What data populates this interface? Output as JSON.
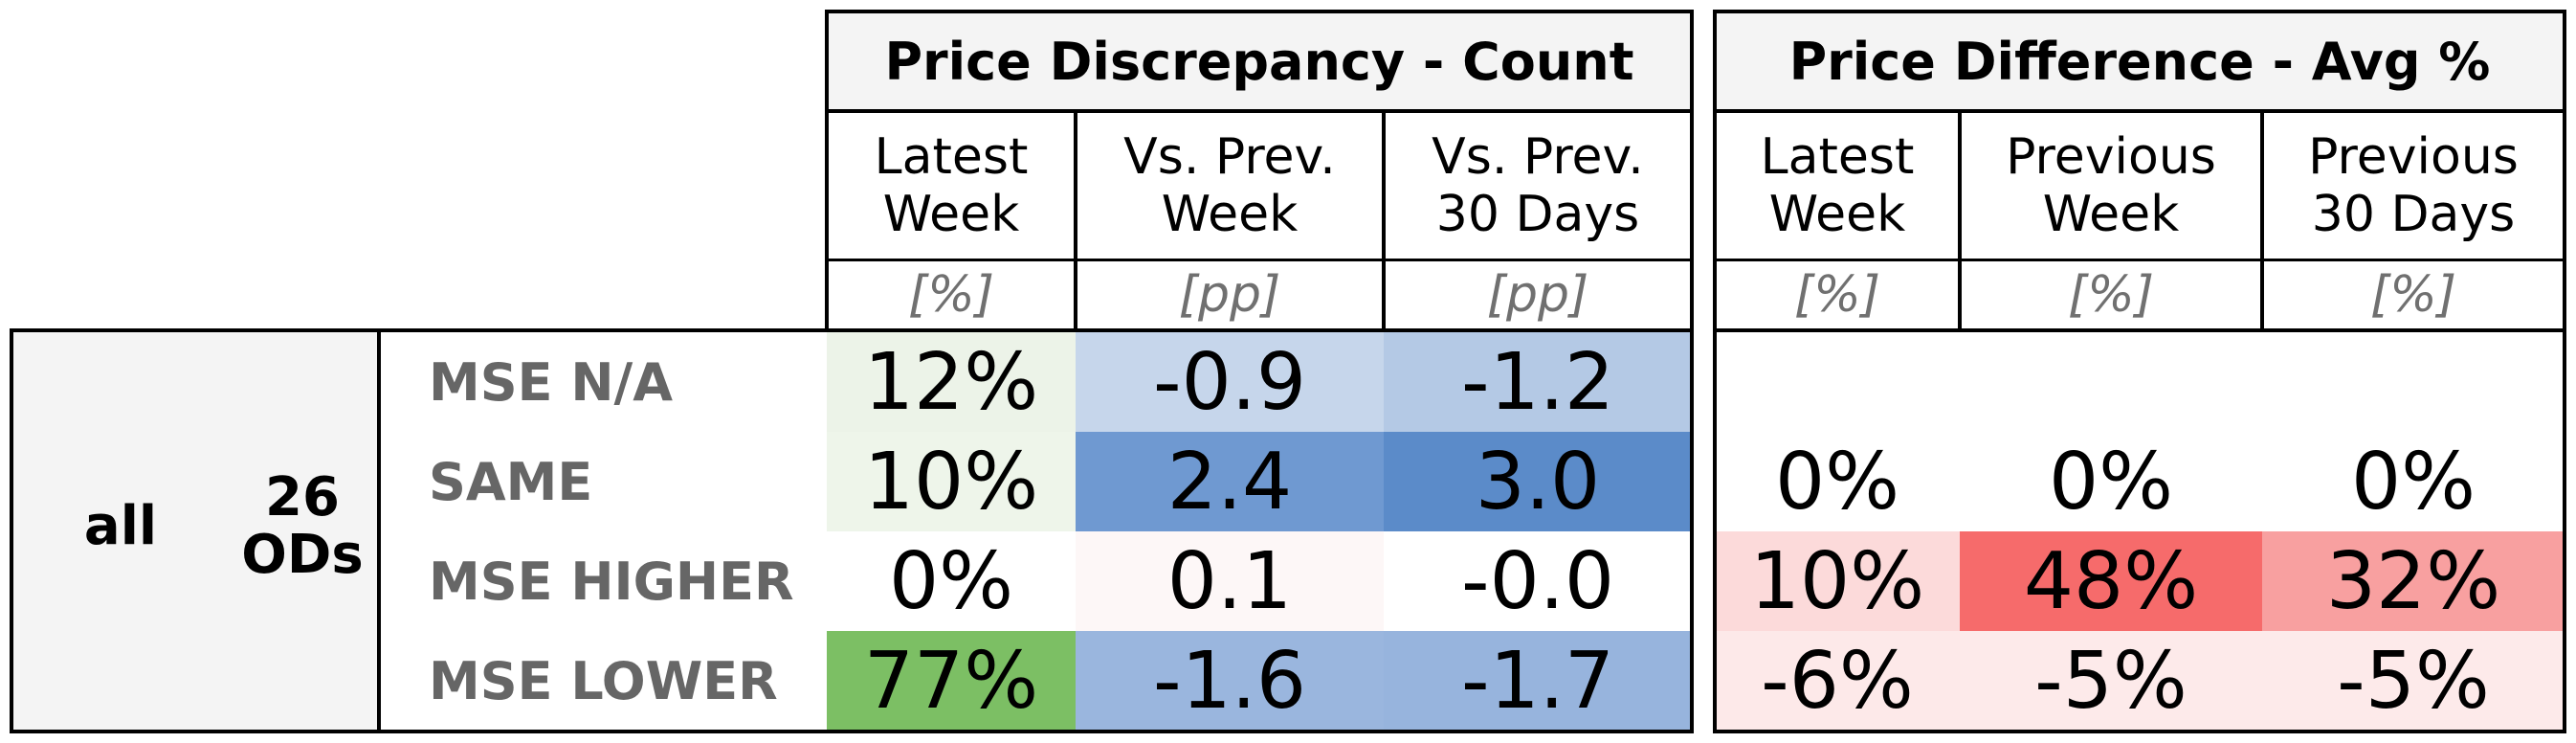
{
  "group": {
    "label": "all",
    "count": "26",
    "count_sub": "ODs"
  },
  "sections": [
    {
      "title": "Price Discrepancy - Count",
      "columns": [
        {
          "line1": "Latest",
          "line2": "Week",
          "unit": "[%]"
        },
        {
          "line1": "Vs. Prev.",
          "line2": "Week",
          "unit": "[pp]"
        },
        {
          "line1": "Vs. Prev.",
          "line2": "30 Days",
          "unit": "[pp]"
        }
      ]
    },
    {
      "title": "Price Difference - Avg %",
      "columns": [
        {
          "line1": "Latest",
          "line2": "Week",
          "unit": "[%]"
        },
        {
          "line1": "Previous",
          "line2": "Week",
          "unit": "[%]"
        },
        {
          "line1": "Previous",
          "line2": "30 Days",
          "unit": "[%]"
        }
      ]
    }
  ],
  "rows": [
    {
      "label": "MSE N/A",
      "count": [
        "12%",
        "-0.9",
        "-1.2"
      ],
      "avg": [
        "",
        "",
        ""
      ],
      "count_colors": [
        "#ecf3e8",
        "#c6d6eb",
        "#b4c9e5"
      ],
      "avg_colors": [
        "#ffffff",
        "#ffffff",
        "#ffffff"
      ]
    },
    {
      "label": "SAME",
      "count": [
        "10%",
        "2.4",
        "3.0"
      ],
      "avg": [
        "0%",
        "0%",
        "0%"
      ],
      "count_colors": [
        "#eef5ea",
        "#6f99d1",
        "#5b8bc9"
      ],
      "avg_colors": [
        "#ffffff",
        "#ffffff",
        "#ffffff"
      ]
    },
    {
      "label": "MSE HIGHER",
      "count": [
        "0%",
        "0.1",
        "-0.0"
      ],
      "avg": [
        "10%",
        "48%",
        "32%"
      ],
      "count_colors": [
        "#ffffff",
        "#fdf7f7",
        "#ffffff"
      ],
      "avg_colors": [
        "#fcdada",
        "#f66b6b",
        "#f8a0a0"
      ]
    },
    {
      "label": "MSE LOWER",
      "count": [
        "77%",
        "-1.6",
        "-1.7"
      ],
      "avg": [
        "-6%",
        "-5%",
        "-5%"
      ],
      "count_colors": [
        "#7cbf64",
        "#9ab6de",
        "#97b4dd"
      ],
      "avg_colors": [
        "#fde9e9",
        "#fdeaea",
        "#fdeaea"
      ]
    }
  ]
}
